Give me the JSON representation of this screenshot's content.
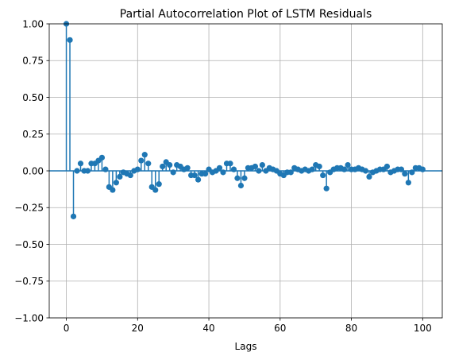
{
  "chart_data": {
    "type": "scatter",
    "title": "Partial Autocorrelation Plot of LSTM Residuals",
    "xlabel": "Lags",
    "ylabel": "",
    "xlim": [
      -4.8,
      105.5
    ],
    "ylim": [
      -1.0,
      1.0
    ],
    "xticks": [
      0,
      20,
      40,
      60,
      80,
      100
    ],
    "xtick_labels": [
      "0",
      "20",
      "40",
      "60",
      "80",
      "100"
    ],
    "yticks": [
      -1.0,
      -0.75,
      -0.5,
      -0.25,
      0.0,
      0.25,
      0.5,
      0.75,
      1.0
    ],
    "ytick_labels": [
      "−1.00",
      "−0.75",
      "−0.50",
      "−0.25",
      "0.00",
      "0.25",
      "0.50",
      "0.75",
      "1.00"
    ],
    "grid": true,
    "color": "#1f77b4",
    "lags": [
      0,
      1,
      2,
      3,
      4,
      5,
      6,
      7,
      8,
      9,
      10,
      11,
      12,
      13,
      14,
      15,
      16,
      17,
      18,
      19,
      20,
      21,
      22,
      23,
      24,
      25,
      26,
      27,
      28,
      29,
      30,
      31,
      32,
      33,
      34,
      35,
      36,
      37,
      38,
      39,
      40,
      41,
      42,
      43,
      44,
      45,
      46,
      47,
      48,
      49,
      50,
      51,
      52,
      53,
      54,
      55,
      56,
      57,
      58,
      59,
      60,
      61,
      62,
      63,
      64,
      65,
      66,
      67,
      68,
      69,
      70,
      71,
      72,
      73,
      74,
      75,
      76,
      77,
      78,
      79,
      80,
      81,
      82,
      83,
      84,
      85,
      86,
      87,
      88,
      89,
      90,
      91,
      92,
      93,
      94,
      95,
      96,
      97,
      98,
      99,
      100
    ],
    "values": [
      1.0,
      0.89,
      -0.31,
      0.0,
      0.05,
      0.0,
      0.0,
      0.05,
      0.05,
      0.07,
      0.09,
      0.01,
      -0.11,
      -0.13,
      -0.08,
      -0.04,
      -0.01,
      -0.02,
      -0.03,
      0.0,
      0.01,
      0.07,
      0.11,
      0.05,
      -0.11,
      -0.13,
      -0.09,
      0.03,
      0.06,
      0.04,
      -0.01,
      0.04,
      0.03,
      0.01,
      0.02,
      -0.03,
      -0.03,
      -0.06,
      -0.02,
      -0.02,
      0.01,
      -0.01,
      0.0,
      0.02,
      -0.01,
      0.05,
      0.05,
      0.01,
      -0.05,
      -0.1,
      -0.05,
      0.02,
      0.02,
      0.03,
      0.0,
      0.04,
      0.0,
      0.02,
      0.01,
      0.0,
      -0.02,
      -0.03,
      -0.01,
      -0.01,
      0.02,
      0.01,
      0.0,
      0.01,
      0.0,
      0.01,
      0.04,
      0.03,
      -0.03,
      -0.12,
      -0.01,
      0.01,
      0.02,
      0.02,
      0.01,
      0.04,
      0.01,
      0.01,
      0.02,
      0.01,
      0.0,
      -0.04,
      -0.01,
      0.0,
      0.01,
      0.01,
      0.03,
      -0.01,
      0.0,
      0.01,
      0.01,
      -0.02,
      -0.08,
      -0.01,
      0.02,
      0.02,
      0.01
    ]
  }
}
